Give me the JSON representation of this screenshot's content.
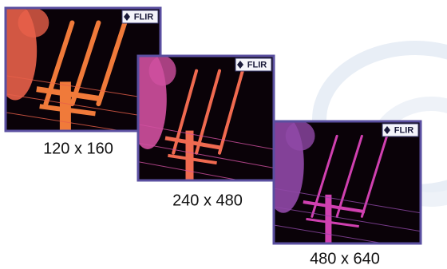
{
  "images": [
    {
      "logo": "FLIR",
      "caption": "120 x 160"
    },
    {
      "logo": "FLIR",
      "caption": "240 x 480"
    },
    {
      "logo": "FLIR",
      "caption": "480 x 640"
    }
  ]
}
